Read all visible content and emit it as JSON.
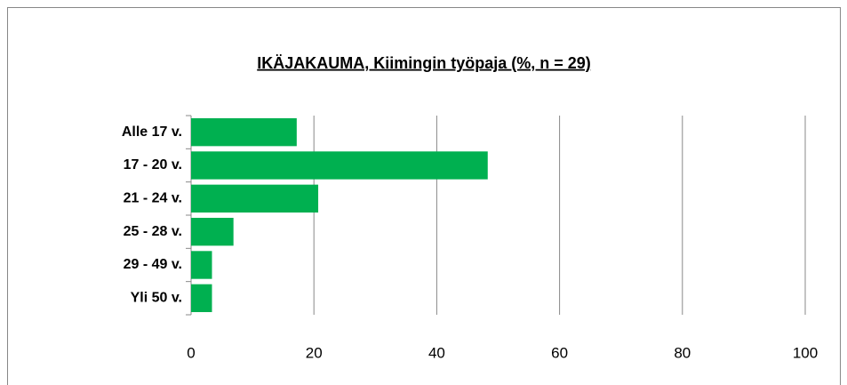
{
  "chart_data": {
    "type": "bar",
    "orientation": "horizontal",
    "title": "IKÄJAKAUMA, Kiimingin työpaja (%,  n = 29)",
    "categories": [
      "Alle 17 v.",
      "17 - 20 v.",
      "21 - 24 v.",
      "25 - 28 v.",
      "29 - 49 v.",
      "Yli 50 v."
    ],
    "values": [
      17.2,
      48.3,
      20.7,
      6.9,
      3.4,
      3.4
    ],
    "color": "#00b050",
    "xlim": [
      0,
      100
    ],
    "xticks": [
      0,
      20,
      40,
      60,
      80,
      100
    ],
    "grid": true
  }
}
